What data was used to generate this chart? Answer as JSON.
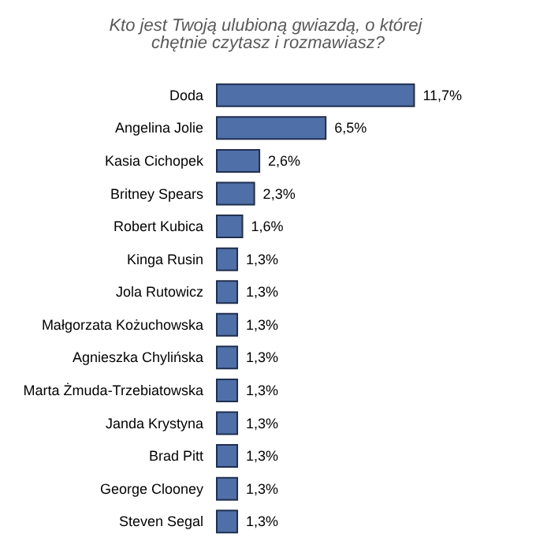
{
  "chart_data": {
    "type": "bar",
    "orientation": "horizontal",
    "title": "Kto jest Twoją ulubioną gwiazdą, o której chętnie czytasz i rozmawiasz?",
    "categories": [
      "Doda",
      "Angelina Jolie",
      "Kasia Cichopek",
      "Britney Spears",
      "Robert Kubica",
      "Kinga Rusin",
      "Jola Rutowicz",
      "Małgorzata Kożuchowska",
      "Agnieszka Chylińska",
      "Marta Żmuda-Trzebiatowska",
      "Janda Krystyna",
      "Brad Pitt",
      "George Clooney",
      "Steven Segal"
    ],
    "values": [
      11.7,
      6.5,
      2.6,
      2.3,
      1.6,
      1.3,
      1.3,
      1.3,
      1.3,
      1.3,
      1.3,
      1.3,
      1.3,
      1.3
    ],
    "value_labels": [
      "11,7%",
      "6,5%",
      "2,6%",
      "2,3%",
      "1,6%",
      "1,3%",
      "1,3%",
      "1,3%",
      "1,3%",
      "1,3%",
      "1,3%",
      "1,3%",
      "1,3%",
      "1,3%"
    ],
    "color": "#4f6fa8"
  }
}
